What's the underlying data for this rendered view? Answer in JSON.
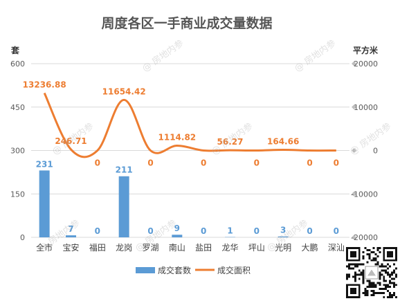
{
  "chart_data": {
    "type": "bar+line",
    "title": "周度各区一手商业成交量数据",
    "left_axis": {
      "label": "套",
      "ticks": [
        "0",
        "150",
        "300",
        "450",
        "600"
      ],
      "range": [
        0,
        600
      ]
    },
    "right_axis": {
      "label": "平方米",
      "ticks": [
        "-20000",
        "-10000",
        "0",
        "10000",
        "20000"
      ],
      "range": [
        -20000,
        20000
      ]
    },
    "categories": [
      "全市",
      "宝安",
      "福田",
      "龙岗",
      "罗湖",
      "南山",
      "盐田",
      "龙华",
      "坪山",
      "光明",
      "大鹏",
      "深汕"
    ],
    "series": [
      {
        "name": "成交套数",
        "type": "bar",
        "axis": "left",
        "color": "#5b9bd5",
        "values": [
          231,
          7,
          0,
          211,
          0,
          9,
          0,
          1,
          0,
          3,
          0,
          0
        ],
        "labels": [
          "231",
          "7",
          "0",
          "211",
          "0",
          "9",
          "0",
          "1",
          "0",
          "3",
          "0",
          "0"
        ]
      },
      {
        "name": "成交面积",
        "type": "line",
        "axis": "right",
        "color": "#ed7d31",
        "values": [
          13236.88,
          246.71,
          0,
          11654.42,
          0,
          1114.82,
          0,
          56.27,
          0,
          164.66,
          0,
          0
        ],
        "labels": [
          "13236.88",
          "246.71",
          "0",
          "11654.42",
          "0",
          "1114.82",
          "0",
          "56.27",
          "0",
          "164.66",
          "0",
          "0"
        ]
      }
    ],
    "legend_position": "bottom",
    "grid": true
  },
  "watermark_text": "房地内参"
}
